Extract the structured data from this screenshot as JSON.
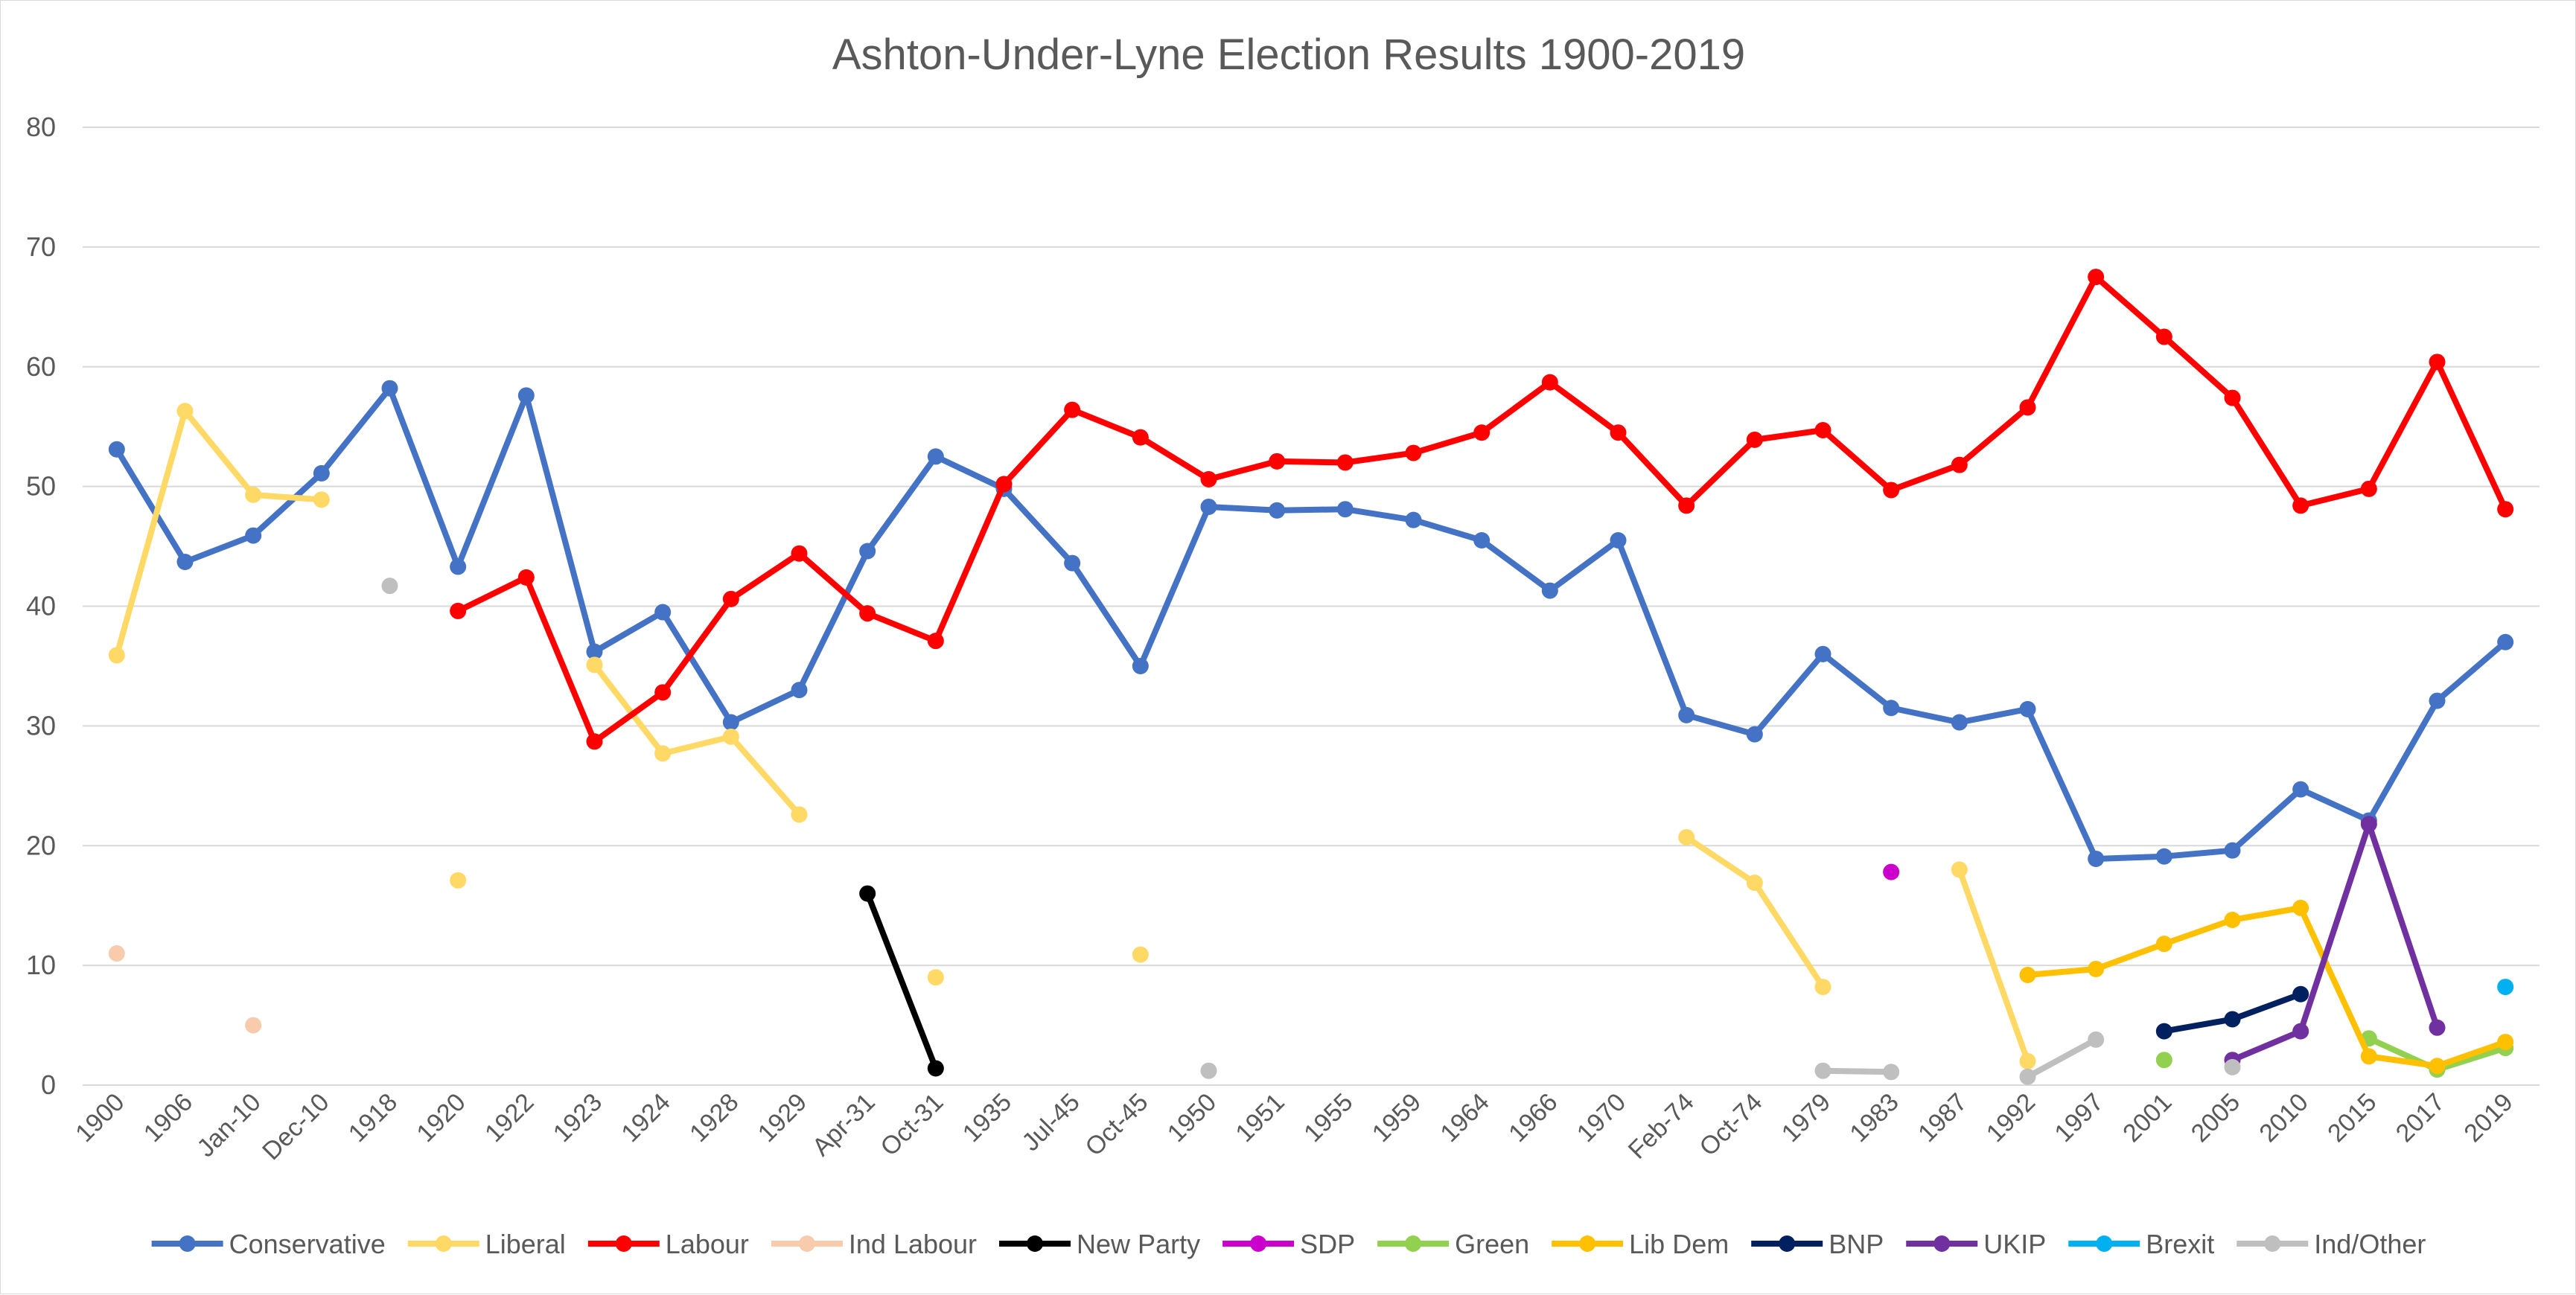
{
  "chart_data": {
    "type": "line",
    "title": "Ashton-Under-Lyne Election Results 1900-2019",
    "ylim": [
      0,
      80
    ],
    "yticks": [
      "0",
      "10",
      "20",
      "30",
      "40",
      "50",
      "60",
      "70",
      "80"
    ],
    "grid": "horizontal",
    "legend_position": "bottom",
    "categories": [
      "1900",
      "1906",
      "Jan-10",
      "Dec-10",
      "1918",
      "1920",
      "1922",
      "1923",
      "1924",
      "1928",
      "1929",
      "Apr-31",
      "Oct-31",
      "1935",
      "Jul-45",
      "Oct-45",
      "1950",
      "1951",
      "1955",
      "1959",
      "1964",
      "1966",
      "1970",
      "Feb-74",
      "Oct-74",
      "1979",
      "1983",
      "1987",
      "1992",
      "1997",
      "2001",
      "2005",
      "2010",
      "2015",
      "2017",
      "2019"
    ],
    "series": [
      {
        "name": "Conservative",
        "color": "#4472C4",
        "values": [
          53.1,
          43.7,
          45.9,
          51.1,
          58.2,
          43.3,
          57.6,
          36.2,
          39.5,
          30.3,
          33.0,
          44.6,
          52.5,
          49.8,
          43.6,
          35.0,
          48.3,
          48.0,
          48.1,
          47.2,
          45.5,
          41.3,
          45.5,
          30.9,
          29.3,
          36.0,
          31.5,
          30.3,
          31.4,
          18.9,
          19.1,
          19.6,
          24.7,
          22.1,
          32.1,
          37.0
        ]
      },
      {
        "name": "Liberal",
        "color": "#FFD966",
        "values": [
          35.9,
          56.3,
          49.3,
          48.9,
          null,
          17.1,
          null,
          35.1,
          27.7,
          29.1,
          22.6,
          null,
          9.0,
          null,
          null,
          10.9,
          null,
          null,
          null,
          null,
          null,
          null,
          null,
          20.7,
          16.9,
          8.2,
          null,
          18.0,
          2.0,
          null,
          null,
          null,
          null,
          null,
          null,
          null
        ]
      },
      {
        "name": "Labour",
        "color": "#FF0000",
        "values": [
          null,
          null,
          null,
          null,
          null,
          39.6,
          42.4,
          28.7,
          32.8,
          40.6,
          44.4,
          39.4,
          37.1,
          50.2,
          56.4,
          54.1,
          50.6,
          52.1,
          52.0,
          52.8,
          54.5,
          58.7,
          54.5,
          48.4,
          53.9,
          54.7,
          49.7,
          51.8,
          56.6,
          67.5,
          62.5,
          57.4,
          48.4,
          49.8,
          60.4,
          48.1
        ]
      },
      {
        "name": "Ind Labour",
        "color": "#F8CBAD",
        "values": [
          11.0,
          null,
          5.0,
          null,
          null,
          null,
          null,
          null,
          null,
          null,
          null,
          null,
          null,
          null,
          null,
          null,
          null,
          null,
          null,
          null,
          null,
          null,
          null,
          null,
          null,
          null,
          null,
          null,
          null,
          null,
          null,
          null,
          null,
          null,
          null,
          null
        ]
      },
      {
        "name": "New Party",
        "color": "#000000",
        "values": [
          null,
          null,
          null,
          null,
          null,
          null,
          null,
          null,
          null,
          null,
          null,
          16.0,
          1.4,
          null,
          null,
          null,
          null,
          null,
          null,
          null,
          null,
          null,
          null,
          null,
          null,
          null,
          null,
          null,
          null,
          null,
          null,
          null,
          null,
          null,
          null,
          null
        ]
      },
      {
        "name": "SDP",
        "color": "#CC00CC",
        "values": [
          null,
          null,
          null,
          null,
          null,
          null,
          null,
          null,
          null,
          null,
          null,
          null,
          null,
          null,
          null,
          null,
          null,
          null,
          null,
          null,
          null,
          null,
          null,
          null,
          null,
          null,
          17.8,
          null,
          null,
          null,
          null,
          null,
          null,
          null,
          null,
          null
        ]
      },
      {
        "name": "Green",
        "color": "#92D050",
        "values": [
          null,
          null,
          null,
          null,
          null,
          null,
          null,
          null,
          null,
          null,
          null,
          null,
          null,
          null,
          null,
          null,
          null,
          null,
          null,
          null,
          null,
          null,
          null,
          null,
          null,
          null,
          null,
          null,
          null,
          null,
          2.1,
          null,
          null,
          3.9,
          1.3,
          3.1
        ]
      },
      {
        "name": "Lib Dem",
        "color": "#FFC000",
        "values": [
          null,
          null,
          null,
          null,
          null,
          null,
          null,
          null,
          null,
          null,
          null,
          null,
          null,
          null,
          null,
          null,
          null,
          null,
          null,
          null,
          null,
          null,
          null,
          null,
          null,
          null,
          null,
          null,
          9.2,
          9.7,
          11.8,
          13.8,
          14.8,
          2.4,
          1.6,
          3.6
        ]
      },
      {
        "name": "BNP",
        "color": "#002060",
        "values": [
          null,
          null,
          null,
          null,
          null,
          null,
          null,
          null,
          null,
          null,
          null,
          null,
          null,
          null,
          null,
          null,
          null,
          null,
          null,
          null,
          null,
          null,
          null,
          null,
          null,
          null,
          null,
          null,
          null,
          null,
          4.5,
          5.5,
          7.6,
          null,
          null,
          null
        ]
      },
      {
        "name": "UKIP",
        "color": "#7030A0",
        "values": [
          null,
          null,
          null,
          null,
          null,
          null,
          null,
          null,
          null,
          null,
          null,
          null,
          null,
          null,
          null,
          null,
          null,
          null,
          null,
          null,
          null,
          null,
          null,
          null,
          null,
          null,
          null,
          null,
          null,
          null,
          null,
          2.1,
          4.5,
          21.8,
          4.8,
          null
        ]
      },
      {
        "name": "Brexit",
        "color": "#00B0F0",
        "values": [
          null,
          null,
          null,
          null,
          null,
          null,
          null,
          null,
          null,
          null,
          null,
          null,
          null,
          null,
          null,
          null,
          null,
          null,
          null,
          null,
          null,
          null,
          null,
          null,
          null,
          null,
          null,
          null,
          null,
          null,
          null,
          null,
          null,
          null,
          null,
          8.2
        ]
      },
      {
        "name": "Ind/Other",
        "color": "#BFBFBF",
        "values": [
          null,
          null,
          null,
          null,
          41.7,
          null,
          null,
          null,
          null,
          null,
          null,
          null,
          null,
          null,
          null,
          null,
          1.2,
          null,
          null,
          null,
          null,
          null,
          null,
          null,
          null,
          1.2,
          1.1,
          null,
          0.7,
          3.8,
          null,
          1.5,
          null,
          null,
          null,
          null
        ]
      }
    ]
  }
}
